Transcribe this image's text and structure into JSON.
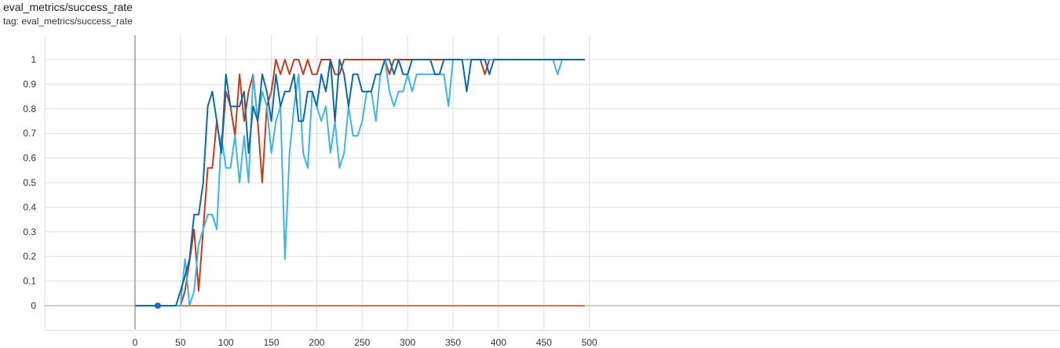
{
  "header": {
    "title": "eval_metrics/success_rate",
    "tag": "tag: eval_metrics/success_rate"
  },
  "chart_data": {
    "type": "line",
    "title": "eval_metrics/success_rate",
    "xlabel": "",
    "ylabel": "",
    "xlim": [
      -50,
      505
    ],
    "ylim": [
      -0.1,
      1.1
    ],
    "xticks": [
      0,
      50,
      100,
      150,
      200,
      250,
      300,
      350,
      400,
      450,
      500
    ],
    "yticks": [
      0,
      0.1,
      0.2,
      0.3,
      0.4,
      0.5,
      0.6,
      0.7,
      0.8,
      0.9,
      1
    ],
    "xtick_labels": [
      "0",
      "50",
      "100",
      "150",
      "200",
      "250",
      "300",
      "350",
      "400",
      "450",
      "500"
    ],
    "ytick_labels": [
      "0",
      "0.1",
      "0.2",
      "0.3",
      "0.4",
      "0.5",
      "0.6",
      "0.7",
      "0.8",
      "0.9",
      "1"
    ],
    "grid": true,
    "highlight_point": {
      "x": 25,
      "y": 0,
      "color": "#1a6fb0"
    },
    "series": [
      {
        "color": "#ef6c4a",
        "x": [
          0,
          495
        ],
        "y": [
          0,
          0
        ]
      },
      {
        "color": "#c53b1d",
        "x": [
          0,
          5,
          10,
          15,
          20,
          25,
          30,
          35,
          40,
          45,
          50,
          55,
          60,
          65,
          70,
          75,
          80,
          85,
          90,
          95,
          100,
          105,
          110,
          115,
          120,
          125,
          130,
          135,
          140,
          145,
          150,
          155,
          160,
          165,
          170,
          175,
          180,
          185,
          190,
          195,
          200,
          205,
          210,
          215,
          220,
          225,
          230,
          235,
          240,
          245,
          250,
          255,
          260,
          265,
          270,
          275,
          280,
          285,
          290,
          295,
          300,
          305,
          310,
          315,
          320,
          325,
          330,
          335,
          340,
          345,
          350,
          355,
          360,
          365,
          370,
          375,
          380,
          385,
          390,
          395,
          400,
          410,
          420,
          430,
          440,
          450,
          460,
          470,
          480,
          490,
          495
        ],
        "y": [
          0,
          0,
          0,
          0,
          0,
          0,
          0,
          0,
          0,
          0,
          0.0,
          0.06,
          0.18,
          0.31,
          0.06,
          0.31,
          0.56,
          0.56,
          0.75,
          0.62,
          0.87,
          0.81,
          0.69,
          0.94,
          0.75,
          0.87,
          0.94,
          0.75,
          0.5,
          0.81,
          0.87,
          1.0,
          0.94,
          1.0,
          0.94,
          1.0,
          1.0,
          0.94,
          1.0,
          0.94,
          0.94,
          1.0,
          1.0,
          1.0,
          0.94,
          0.94,
          1.0,
          1.0,
          1.0,
          1.0,
          1.0,
          1.0,
          1.0,
          1.0,
          1.0,
          1.0,
          0.94,
          1.0,
          1.0,
          1.0,
          1.0,
          1.0,
          1.0,
          1.0,
          1.0,
          1.0,
          1.0,
          1.0,
          1.0,
          1.0,
          1.0,
          1.0,
          1.0,
          1.0,
          1.0,
          1.0,
          1.0,
          0.94,
          1.0,
          1.0,
          1.0,
          1.0,
          1.0,
          1.0,
          1.0,
          1.0,
          1.0,
          1.0,
          1.0,
          1.0,
          1.0
        ]
      },
      {
        "color": "#3eb6e0",
        "x": [
          0,
          5,
          10,
          15,
          20,
          25,
          30,
          35,
          40,
          45,
          50,
          55,
          60,
          65,
          70,
          75,
          80,
          85,
          90,
          95,
          100,
          105,
          110,
          115,
          120,
          125,
          130,
          135,
          140,
          145,
          150,
          155,
          160,
          165,
          170,
          175,
          180,
          185,
          190,
          195,
          200,
          205,
          210,
          215,
          220,
          225,
          230,
          235,
          240,
          245,
          250,
          255,
          260,
          265,
          270,
          275,
          280,
          285,
          290,
          295,
          300,
          305,
          310,
          315,
          320,
          325,
          330,
          335,
          340,
          345,
          350,
          355,
          360,
          365,
          370,
          375,
          380,
          385,
          390,
          395,
          400,
          410,
          420,
          430,
          440,
          450,
          460,
          465,
          470,
          475,
          480,
          490,
          495
        ],
        "y": [
          0,
          0,
          0,
          0,
          0,
          0,
          0,
          0,
          0,
          0,
          0.0,
          0.19,
          0.0,
          0.06,
          0.25,
          0.31,
          0.37,
          0.37,
          0.31,
          0.69,
          0.56,
          0.56,
          0.69,
          0.5,
          0.69,
          0.5,
          0.94,
          0.75,
          0.87,
          0.81,
          0.62,
          0.75,
          0.81,
          0.19,
          0.62,
          0.81,
          0.94,
          0.62,
          0.56,
          0.87,
          0.81,
          0.75,
          0.81,
          0.62,
          0.75,
          0.56,
          0.62,
          0.81,
          0.69,
          0.69,
          0.75,
          0.87,
          0.87,
          0.75,
          0.94,
          1.0,
          0.87,
          0.81,
          0.87,
          0.87,
          0.94,
          0.87,
          0.94,
          0.94,
          0.94,
          0.94,
          0.94,
          0.94,
          0.94,
          0.81,
          1.0,
          1.0,
          1.0,
          1.0,
          1.0,
          1.0,
          1.0,
          1.0,
          1.0,
          1.0,
          1.0,
          1.0,
          1.0,
          1.0,
          1.0,
          1.0,
          1.0,
          0.94,
          1.0,
          1.0,
          1.0,
          1.0,
          1.0
        ]
      },
      {
        "color": "#0d6aa6",
        "x": [
          0,
          5,
          10,
          15,
          20,
          25,
          30,
          35,
          40,
          45,
          50,
          55,
          60,
          65,
          70,
          75,
          80,
          85,
          90,
          95,
          100,
          105,
          110,
          115,
          120,
          125,
          130,
          135,
          140,
          145,
          150,
          155,
          160,
          165,
          170,
          175,
          180,
          185,
          190,
          195,
          200,
          205,
          210,
          215,
          220,
          225,
          230,
          235,
          240,
          245,
          250,
          255,
          260,
          265,
          270,
          275,
          280,
          285,
          290,
          295,
          300,
          305,
          310,
          315,
          320,
          325,
          330,
          335,
          340,
          345,
          350,
          355,
          360,
          365,
          370,
          375,
          380,
          385,
          390,
          395,
          400,
          410,
          420,
          430,
          440,
          450,
          460,
          470,
          480,
          490,
          495
        ],
        "y": [
          0,
          0,
          0,
          0,
          0,
          0,
          0,
          0,
          0,
          0,
          0.06,
          0.12,
          0.19,
          0.37,
          0.37,
          0.5,
          0.81,
          0.87,
          0.75,
          0.62,
          0.94,
          0.81,
          0.81,
          0.81,
          0.87,
          0.62,
          0.81,
          0.75,
          0.94,
          0.87,
          0.75,
          0.94,
          0.81,
          0.87,
          0.87,
          0.94,
          0.75,
          0.75,
          0.87,
          0.87,
          0.81,
          0.94,
          0.87,
          1.0,
          0.75,
          1.0,
          0.94,
          0.81,
          0.94,
          0.94,
          0.87,
          0.87,
          0.87,
          0.94,
          0.94,
          1.0,
          1.0,
          0.94,
          1.0,
          0.94,
          0.94,
          1.0,
          1.0,
          1.0,
          1.0,
          1.0,
          0.94,
          0.94,
          1.0,
          1.0,
          1.0,
          1.0,
          1.0,
          0.87,
          1.0,
          1.0,
          1.0,
          1.0,
          0.94,
          1.0,
          1.0,
          1.0,
          1.0,
          1.0,
          1.0,
          1.0,
          1.0,
          1.0,
          1.0,
          1.0,
          1.0
        ]
      }
    ]
  }
}
